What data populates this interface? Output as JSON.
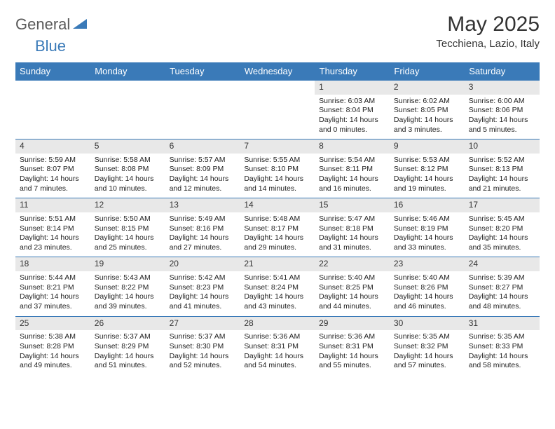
{
  "brand": {
    "part1": "General",
    "part2": "Blue"
  },
  "title": "May 2025",
  "location": "Tecchiena, Lazio, Italy",
  "colors": {
    "header_bg": "#3a7ab8",
    "header_text": "#ffffff",
    "daynum_bg": "#e8e8e8",
    "row_border": "#3a7ab8",
    "brand_gray": "#5a5a5a",
    "brand_blue": "#3a7ab8"
  },
  "weekdays": [
    "Sunday",
    "Monday",
    "Tuesday",
    "Wednesday",
    "Thursday",
    "Friday",
    "Saturday"
  ],
  "weeks": [
    [
      {
        "n": "",
        "sr": "",
        "ss": "",
        "dl": ""
      },
      {
        "n": "",
        "sr": "",
        "ss": "",
        "dl": ""
      },
      {
        "n": "",
        "sr": "",
        "ss": "",
        "dl": ""
      },
      {
        "n": "",
        "sr": "",
        "ss": "",
        "dl": ""
      },
      {
        "n": "1",
        "sr": "Sunrise: 6:03 AM",
        "ss": "Sunset: 8:04 PM",
        "dl": "Daylight: 14 hours and 0 minutes."
      },
      {
        "n": "2",
        "sr": "Sunrise: 6:02 AM",
        "ss": "Sunset: 8:05 PM",
        "dl": "Daylight: 14 hours and 3 minutes."
      },
      {
        "n": "3",
        "sr": "Sunrise: 6:00 AM",
        "ss": "Sunset: 8:06 PM",
        "dl": "Daylight: 14 hours and 5 minutes."
      }
    ],
    [
      {
        "n": "4",
        "sr": "Sunrise: 5:59 AM",
        "ss": "Sunset: 8:07 PM",
        "dl": "Daylight: 14 hours and 7 minutes."
      },
      {
        "n": "5",
        "sr": "Sunrise: 5:58 AM",
        "ss": "Sunset: 8:08 PM",
        "dl": "Daylight: 14 hours and 10 minutes."
      },
      {
        "n": "6",
        "sr": "Sunrise: 5:57 AM",
        "ss": "Sunset: 8:09 PM",
        "dl": "Daylight: 14 hours and 12 minutes."
      },
      {
        "n": "7",
        "sr": "Sunrise: 5:55 AM",
        "ss": "Sunset: 8:10 PM",
        "dl": "Daylight: 14 hours and 14 minutes."
      },
      {
        "n": "8",
        "sr": "Sunrise: 5:54 AM",
        "ss": "Sunset: 8:11 PM",
        "dl": "Daylight: 14 hours and 16 minutes."
      },
      {
        "n": "9",
        "sr": "Sunrise: 5:53 AM",
        "ss": "Sunset: 8:12 PM",
        "dl": "Daylight: 14 hours and 19 minutes."
      },
      {
        "n": "10",
        "sr": "Sunrise: 5:52 AM",
        "ss": "Sunset: 8:13 PM",
        "dl": "Daylight: 14 hours and 21 minutes."
      }
    ],
    [
      {
        "n": "11",
        "sr": "Sunrise: 5:51 AM",
        "ss": "Sunset: 8:14 PM",
        "dl": "Daylight: 14 hours and 23 minutes."
      },
      {
        "n": "12",
        "sr": "Sunrise: 5:50 AM",
        "ss": "Sunset: 8:15 PM",
        "dl": "Daylight: 14 hours and 25 minutes."
      },
      {
        "n": "13",
        "sr": "Sunrise: 5:49 AM",
        "ss": "Sunset: 8:16 PM",
        "dl": "Daylight: 14 hours and 27 minutes."
      },
      {
        "n": "14",
        "sr": "Sunrise: 5:48 AM",
        "ss": "Sunset: 8:17 PM",
        "dl": "Daylight: 14 hours and 29 minutes."
      },
      {
        "n": "15",
        "sr": "Sunrise: 5:47 AM",
        "ss": "Sunset: 8:18 PM",
        "dl": "Daylight: 14 hours and 31 minutes."
      },
      {
        "n": "16",
        "sr": "Sunrise: 5:46 AM",
        "ss": "Sunset: 8:19 PM",
        "dl": "Daylight: 14 hours and 33 minutes."
      },
      {
        "n": "17",
        "sr": "Sunrise: 5:45 AM",
        "ss": "Sunset: 8:20 PM",
        "dl": "Daylight: 14 hours and 35 minutes."
      }
    ],
    [
      {
        "n": "18",
        "sr": "Sunrise: 5:44 AM",
        "ss": "Sunset: 8:21 PM",
        "dl": "Daylight: 14 hours and 37 minutes."
      },
      {
        "n": "19",
        "sr": "Sunrise: 5:43 AM",
        "ss": "Sunset: 8:22 PM",
        "dl": "Daylight: 14 hours and 39 minutes."
      },
      {
        "n": "20",
        "sr": "Sunrise: 5:42 AM",
        "ss": "Sunset: 8:23 PM",
        "dl": "Daylight: 14 hours and 41 minutes."
      },
      {
        "n": "21",
        "sr": "Sunrise: 5:41 AM",
        "ss": "Sunset: 8:24 PM",
        "dl": "Daylight: 14 hours and 43 minutes."
      },
      {
        "n": "22",
        "sr": "Sunrise: 5:40 AM",
        "ss": "Sunset: 8:25 PM",
        "dl": "Daylight: 14 hours and 44 minutes."
      },
      {
        "n": "23",
        "sr": "Sunrise: 5:40 AM",
        "ss": "Sunset: 8:26 PM",
        "dl": "Daylight: 14 hours and 46 minutes."
      },
      {
        "n": "24",
        "sr": "Sunrise: 5:39 AM",
        "ss": "Sunset: 8:27 PM",
        "dl": "Daylight: 14 hours and 48 minutes."
      }
    ],
    [
      {
        "n": "25",
        "sr": "Sunrise: 5:38 AM",
        "ss": "Sunset: 8:28 PM",
        "dl": "Daylight: 14 hours and 49 minutes."
      },
      {
        "n": "26",
        "sr": "Sunrise: 5:37 AM",
        "ss": "Sunset: 8:29 PM",
        "dl": "Daylight: 14 hours and 51 minutes."
      },
      {
        "n": "27",
        "sr": "Sunrise: 5:37 AM",
        "ss": "Sunset: 8:30 PM",
        "dl": "Daylight: 14 hours and 52 minutes."
      },
      {
        "n": "28",
        "sr": "Sunrise: 5:36 AM",
        "ss": "Sunset: 8:31 PM",
        "dl": "Daylight: 14 hours and 54 minutes."
      },
      {
        "n": "29",
        "sr": "Sunrise: 5:36 AM",
        "ss": "Sunset: 8:31 PM",
        "dl": "Daylight: 14 hours and 55 minutes."
      },
      {
        "n": "30",
        "sr": "Sunrise: 5:35 AM",
        "ss": "Sunset: 8:32 PM",
        "dl": "Daylight: 14 hours and 57 minutes."
      },
      {
        "n": "31",
        "sr": "Sunrise: 5:35 AM",
        "ss": "Sunset: 8:33 PM",
        "dl": "Daylight: 14 hours and 58 minutes."
      }
    ]
  ]
}
